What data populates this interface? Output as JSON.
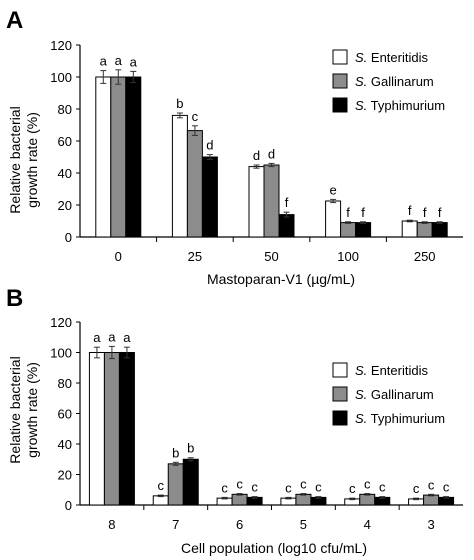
{
  "chart_data": [
    {
      "type": "bar",
      "panel_label": "A",
      "ylabel_lines": [
        "Relative bacterial",
        "growth rate (%)"
      ],
      "xlabel": "Mastoparan-V1 (µg/mL)",
      "ylim": [
        0,
        120
      ],
      "yticks": [
        "0",
        "20",
        "40",
        "60",
        "80",
        "100",
        "120"
      ],
      "categories": [
        "0",
        "25",
        "50",
        "100",
        "250"
      ],
      "series": [
        {
          "name": "S. Enteritidis",
          "species": "S.",
          "strain": "Enteritidis",
          "color": "#ffffff",
          "values": [
            100,
            76,
            44,
            22.5,
            10
          ],
          "errors": [
            4,
            1.5,
            1,
            1,
            0.5
          ],
          "letters": [
            "a",
            "b",
            "d",
            "e",
            "f"
          ]
        },
        {
          "name": "S. Gallinarum",
          "species": "S.",
          "strain": "Gallinarum",
          "color": "#8c8c8c",
          "values": [
            100,
            66.5,
            45,
            9,
            9
          ],
          "errors": [
            4.5,
            3,
            1,
            0.5,
            0.5
          ],
          "letters": [
            "a",
            "c",
            "d",
            "f",
            "f"
          ]
        },
        {
          "name": "S. Typhimurium",
          "species": "S.",
          "strain": "Typhimurium",
          "color": "#000000",
          "values": [
            100,
            50,
            14,
            9,
            9
          ],
          "errors": [
            3.5,
            1.5,
            1.5,
            0.5,
            0.5
          ],
          "letters": [
            "a",
            "d",
            "f",
            "f",
            "f"
          ]
        }
      ],
      "legend": "top-right",
      "grid": false
    },
    {
      "type": "bar",
      "panel_label": "B",
      "ylabel_lines": [
        "Relative bacterial",
        "growth rate (%)"
      ],
      "xlabel": "Cell population (log10 cfu/mL)",
      "ylim": [
        0,
        120
      ],
      "yticks": [
        "0",
        "20",
        "40",
        "60",
        "80",
        "100",
        "120"
      ],
      "categories": [
        "8",
        "7",
        "6",
        "5",
        "4",
        "3"
      ],
      "series": [
        {
          "name": "S. Enteritidis",
          "species": "S.",
          "strain": "Enteritidis",
          "color": "#ffffff",
          "values": [
            100,
            6,
            4.5,
            4.5,
            4,
            4
          ],
          "errors": [
            3.5,
            0.5,
            0.5,
            0.5,
            0.5,
            0.5
          ],
          "letters": [
            "a",
            "c",
            "c",
            "c",
            "c",
            "c"
          ]
        },
        {
          "name": "S. Gallinarum",
          "species": "S.",
          "strain": "Gallinarum",
          "color": "#8c8c8c",
          "values": [
            100,
            27,
            7,
            7,
            7,
            6.5
          ],
          "errors": [
            4,
            1,
            0.5,
            0.5,
            0.5,
            0.5
          ],
          "letters": [
            "a",
            "b",
            "c",
            "c",
            "c",
            "c"
          ]
        },
        {
          "name": "S. Typhimurium",
          "species": "S.",
          "strain": "Typhimurium",
          "color": "#000000",
          "values": [
            100,
            30,
            5,
            5,
            5,
            5
          ],
          "errors": [
            3.5,
            1,
            0.5,
            0.5,
            0.5,
            0.5
          ],
          "letters": [
            "a",
            "b",
            "c",
            "c",
            "c",
            "c"
          ]
        }
      ],
      "legend": "top-right",
      "grid": false
    }
  ]
}
